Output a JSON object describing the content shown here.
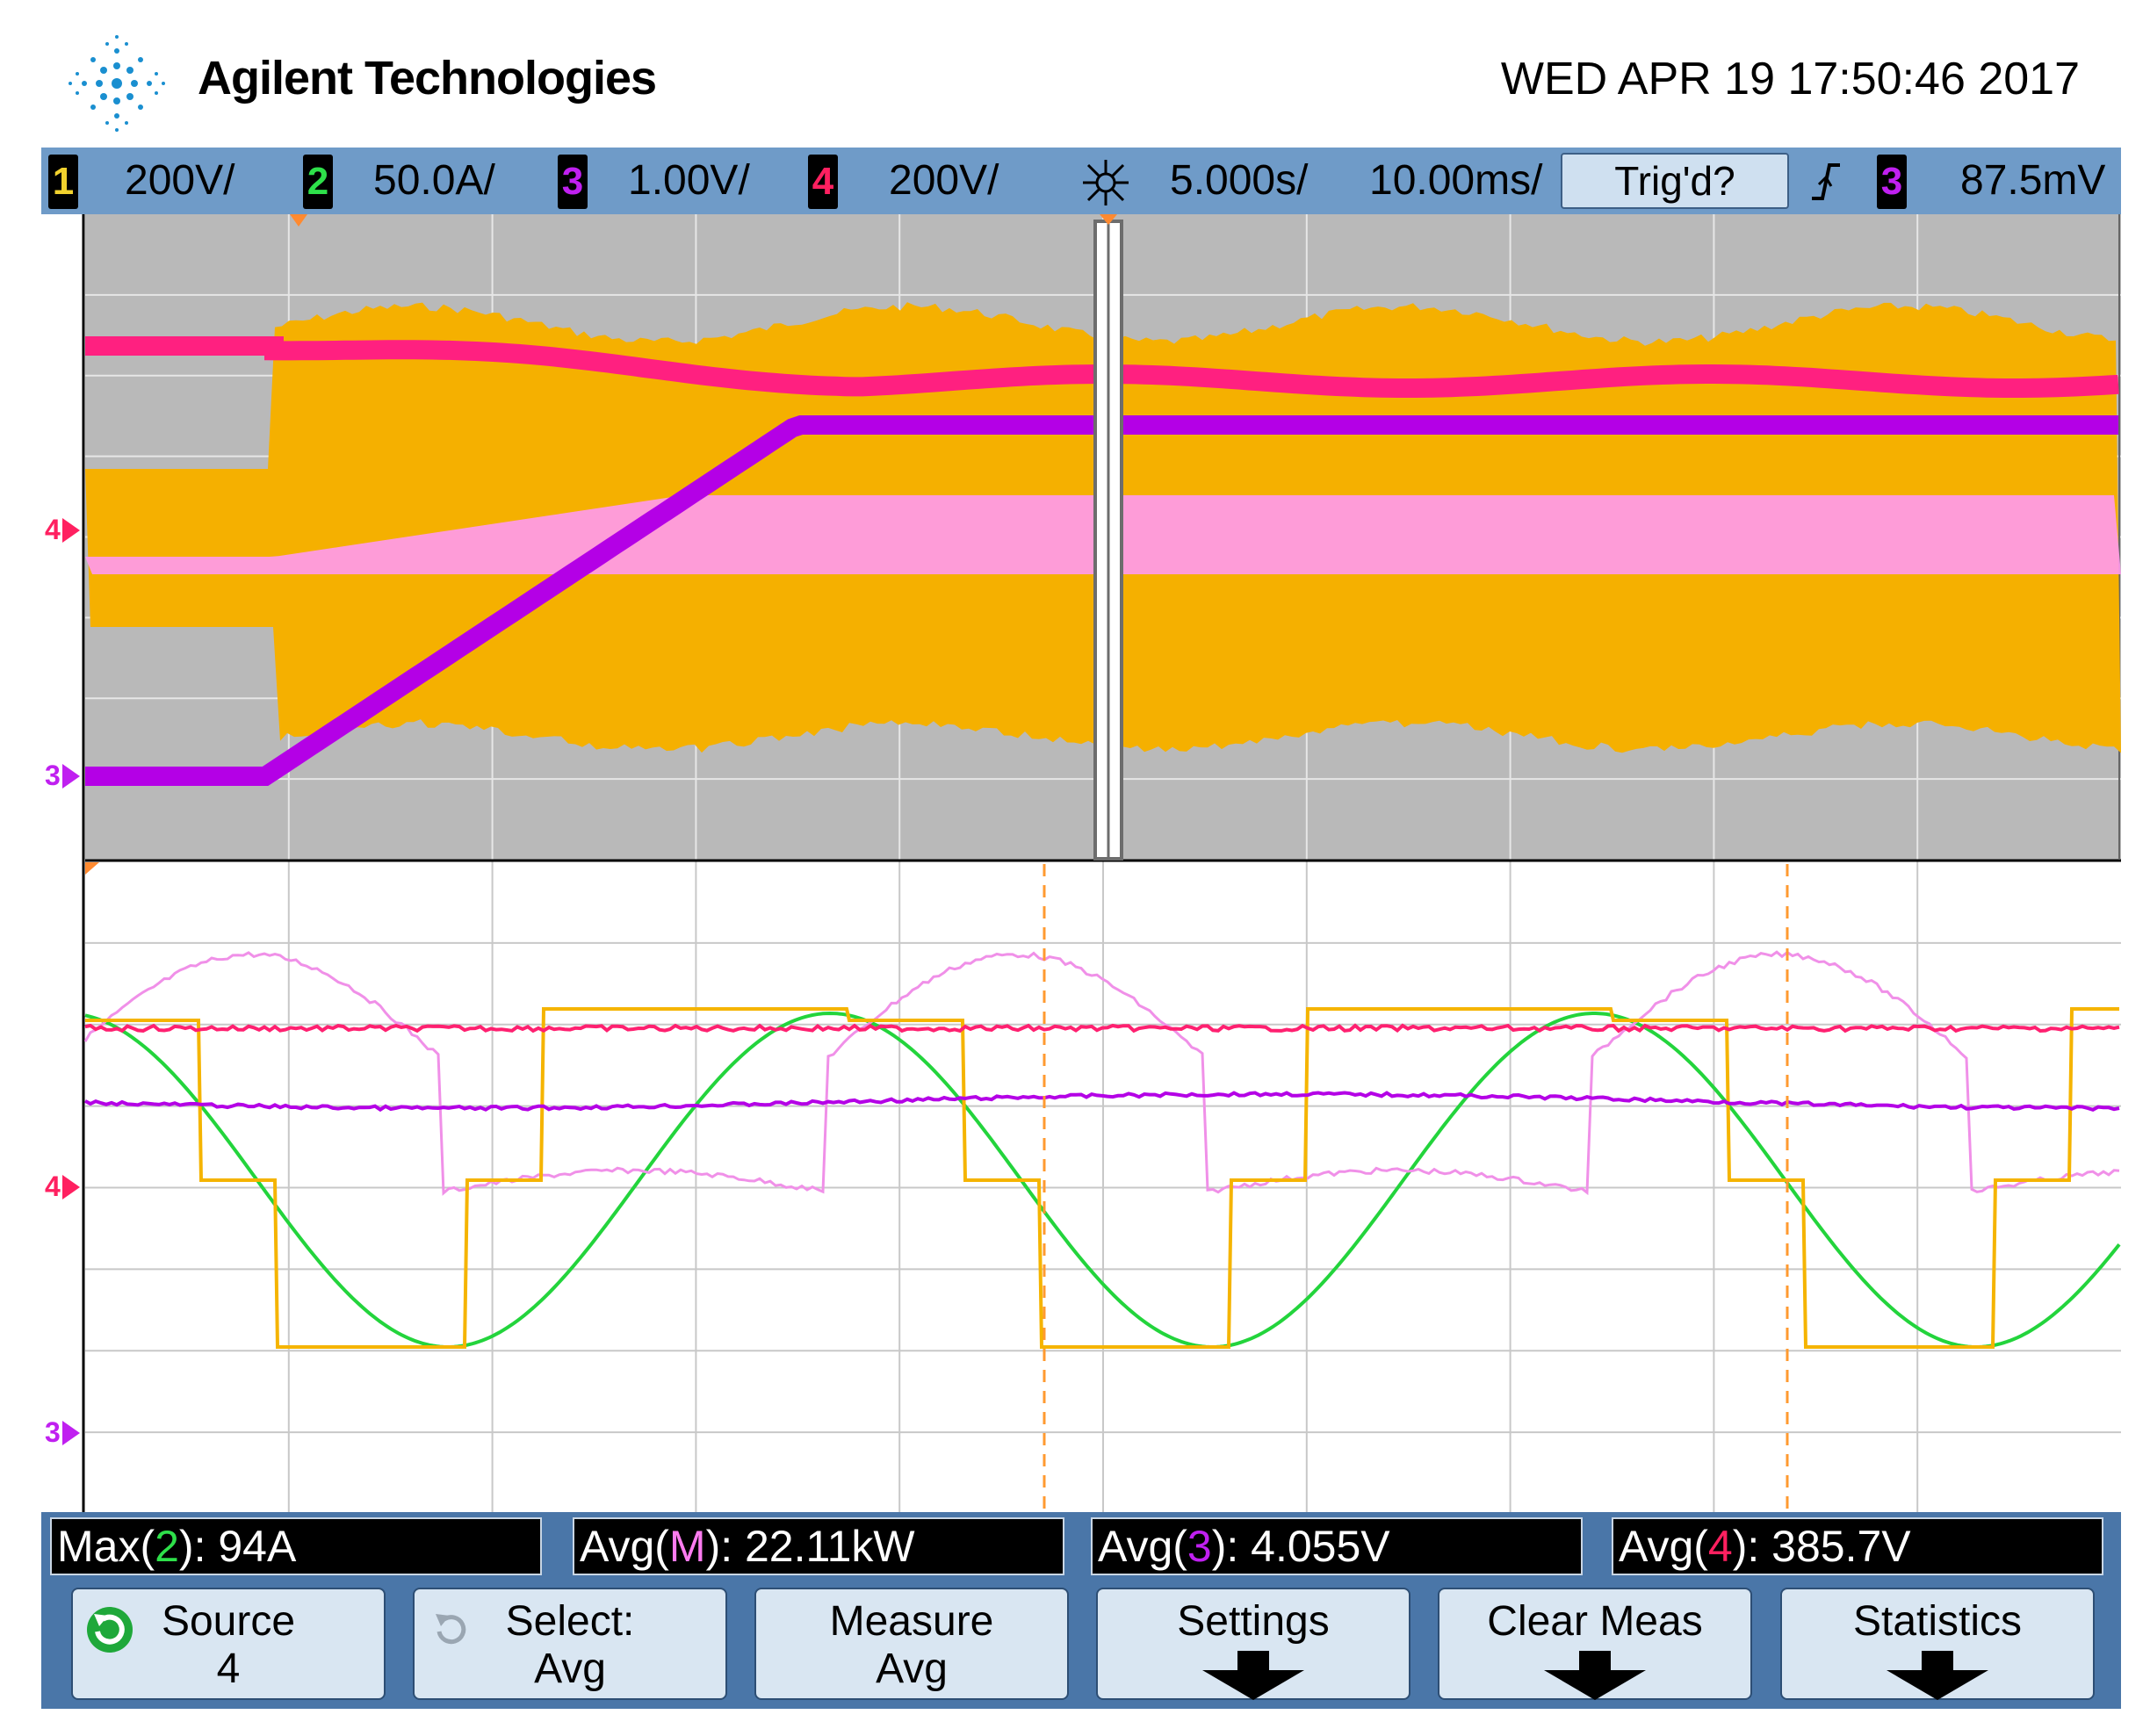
{
  "header": {
    "brand": "Agilent Technologies",
    "datetime": "WED APR 19 17:50:46 2017"
  },
  "channels": [
    {
      "num": "1",
      "scale": "200V/",
      "color": "#f2d22e"
    },
    {
      "num": "2",
      "scale": "50.0A/",
      "color": "#2ee04a"
    },
    {
      "num": "3",
      "scale": "1.00V/",
      "color": "#c020f0"
    },
    {
      "num": "4",
      "scale": "200V/",
      "color": "#ff2060"
    }
  ],
  "timebase": {
    "position": "5.000s/",
    "scale": "10.00ms/"
  },
  "trigger": {
    "status": "Trig'd?",
    "source": "3",
    "level": "87.5mV"
  },
  "markers": {
    "ch4": "4",
    "ch3": "3"
  },
  "measurements": [
    {
      "label": "Max(",
      "src": "2",
      "tail": "): 94A",
      "src_color": "#2ee04a"
    },
    {
      "label": "Avg(",
      "src": "M",
      "tail": "): 22.11kW",
      "src_color": "#ff7cf0"
    },
    {
      "label": "Avg(",
      "src": "3",
      "tail": "): 4.055V",
      "src_color": "#c020f0"
    },
    {
      "label": "Avg(",
      "src": "4",
      "tail": "): 385.7V",
      "src_color": "#ff2060"
    }
  ],
  "softkeys": [
    {
      "line1": "Source",
      "line2": "4",
      "icon": "refresh-icon"
    },
    {
      "line1": "Select:",
      "line2": "Avg",
      "icon": "refresh-icon"
    },
    {
      "line1": "Measure",
      "line2": "Avg"
    },
    {
      "line1": "Settings",
      "line2": "",
      "icon": "arrow-down-icon"
    },
    {
      "line1": "Clear Meas",
      "line2": "",
      "icon": "arrow-down-icon"
    },
    {
      "line1": "Statistics",
      "line2": "",
      "icon": "arrow-down-icon"
    }
  ]
}
